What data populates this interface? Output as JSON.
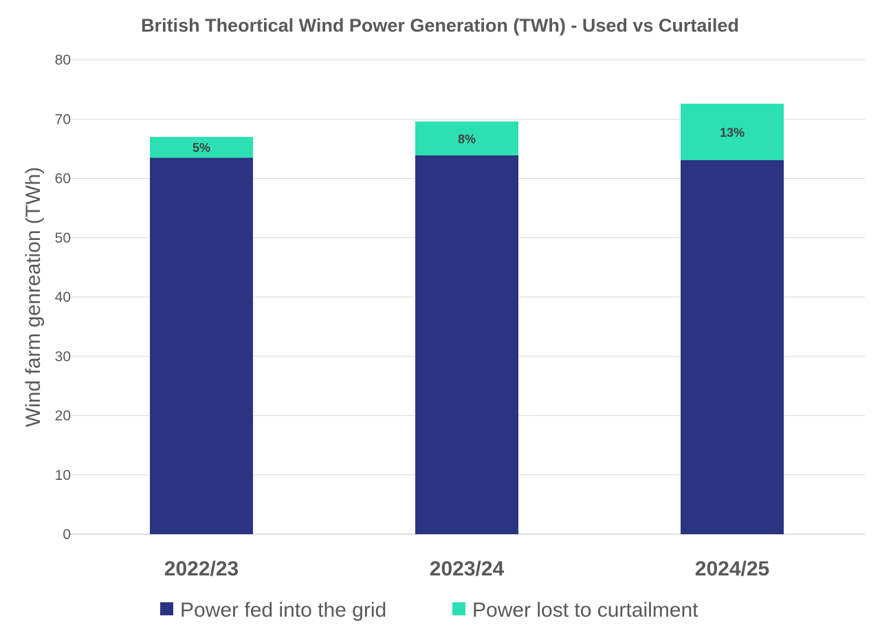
{
  "chart_data": {
    "type": "bar",
    "stacked": true,
    "title": "British Theortical Wind Power Generation (TWh) - Used vs Curtailed",
    "xlabel": "",
    "ylabel": "Wind farm genreation (TWh)",
    "ylim": [
      0,
      80
    ],
    "yticks": [
      0,
      10,
      20,
      30,
      40,
      50,
      60,
      70,
      80
    ],
    "grid": true,
    "legend_position": "bottom",
    "categories": [
      "2022/23",
      "2023/24",
      "2024/25"
    ],
    "series": [
      {
        "name": "Power fed into the grid",
        "color": "#2B3481",
        "values": [
          63.5,
          63.9,
          63.1
        ]
      },
      {
        "name": "Power lost to curtailment",
        "color": "#2CE0B4",
        "values": [
          3.5,
          5.7,
          9.5
        ],
        "data_labels": [
          "5%",
          "8%",
          "13%"
        ]
      }
    ]
  }
}
